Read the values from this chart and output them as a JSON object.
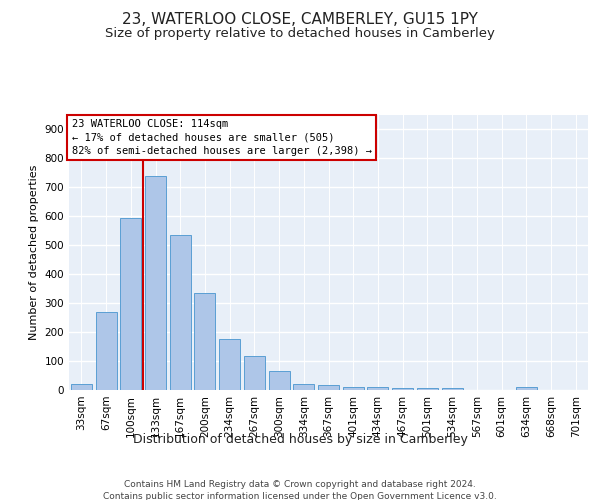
{
  "title": "23, WATERLOO CLOSE, CAMBERLEY, GU15 1PY",
  "subtitle": "Size of property relative to detached houses in Camberley",
  "xlabel": "Distribution of detached houses by size in Camberley",
  "ylabel": "Number of detached properties",
  "categories": [
    "33sqm",
    "67sqm",
    "100sqm",
    "133sqm",
    "167sqm",
    "200sqm",
    "234sqm",
    "267sqm",
    "300sqm",
    "334sqm",
    "367sqm",
    "401sqm",
    "434sqm",
    "467sqm",
    "501sqm",
    "534sqm",
    "567sqm",
    "601sqm",
    "634sqm",
    "668sqm",
    "701sqm"
  ],
  "values": [
    20,
    270,
    595,
    740,
    535,
    335,
    175,
    118,
    65,
    22,
    18,
    10,
    10,
    7,
    7,
    7,
    0,
    0,
    10,
    0,
    0
  ],
  "bar_color": "#aec6e8",
  "bar_edge_color": "#5a9fd4",
  "property_line_color": "#cc0000",
  "annotation_text": "23 WATERLOO CLOSE: 114sqm\n← 17% of detached houses are smaller (505)\n82% of semi-detached houses are larger (2,398) →",
  "annotation_box_color": "#cc0000",
  "ylim": [
    0,
    950
  ],
  "yticks": [
    0,
    100,
    200,
    300,
    400,
    500,
    600,
    700,
    800,
    900
  ],
  "background_color": "#e8eff8",
  "grid_color": "#ffffff",
  "footer_text": "Contains HM Land Registry data © Crown copyright and database right 2024.\nContains public sector information licensed under the Open Government Licence v3.0.",
  "title_fontsize": 11,
  "subtitle_fontsize": 9.5,
  "xlabel_fontsize": 9,
  "ylabel_fontsize": 8,
  "tick_fontsize": 7.5,
  "annotation_fontsize": 7.5,
  "footer_fontsize": 6.5
}
